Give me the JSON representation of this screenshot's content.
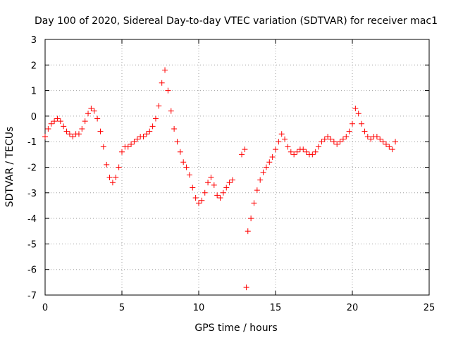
{
  "chart_data": {
    "type": "scatter",
    "title": "Day 100 of 2020, Sidereal Day-to-day VTEC variation (SDTVAR) for receiver mac1",
    "xlabel": "GPS time / hours",
    "ylabel": "SDTVAR / TECUs",
    "xlim": [
      0,
      25
    ],
    "ylim": [
      -7,
      3
    ],
    "xticks": [
      "0",
      "5",
      "10",
      "15",
      "20",
      "25"
    ],
    "yticks": [
      "3",
      "2",
      "1",
      "0",
      "-1",
      "-2",
      "-3",
      "-4",
      "-5",
      "-6",
      "-7"
    ],
    "grid": true,
    "marker": "+",
    "series": [
      {
        "name": "SDTVAR",
        "color": "#ff0000",
        "x": [
          0.0,
          0.2,
          0.4,
          0.6,
          0.8,
          1.0,
          1.2,
          1.4,
          1.6,
          1.8,
          2.0,
          2.2,
          2.4,
          2.6,
          2.8,
          3.0,
          3.2,
          3.4,
          3.6,
          3.8,
          4.0,
          4.2,
          4.4,
          4.6,
          4.8,
          5.0,
          5.2,
          5.4,
          5.6,
          5.8,
          6.0,
          6.2,
          6.4,
          6.6,
          6.8,
          7.0,
          7.2,
          7.4,
          7.6,
          7.8,
          8.0,
          8.2,
          8.4,
          8.6,
          8.8,
          9.0,
          9.2,
          9.4,
          9.6,
          9.8,
          10.0,
          10.2,
          10.4,
          10.6,
          10.8,
          11.0,
          11.2,
          11.4,
          11.6,
          11.8,
          12.0,
          12.2,
          12.8,
          13.0,
          13.1,
          13.2,
          13.4,
          13.6,
          13.8,
          14.0,
          14.2,
          14.4,
          14.6,
          14.8,
          15.0,
          15.2,
          15.4,
          15.6,
          15.8,
          16.0,
          16.2,
          16.4,
          16.6,
          16.8,
          17.0,
          17.2,
          17.4,
          17.6,
          17.8,
          18.0,
          18.2,
          18.4,
          18.6,
          18.8,
          19.0,
          19.2,
          19.4,
          19.6,
          19.8,
          20.0,
          20.2,
          20.4,
          20.6,
          20.8,
          21.0,
          21.2,
          21.4,
          21.6,
          21.8,
          22.0,
          22.2,
          22.4,
          22.6,
          22.8
        ],
        "y": [
          -0.8,
          -0.5,
          -0.3,
          -0.2,
          -0.1,
          -0.2,
          -0.4,
          -0.6,
          -0.7,
          -0.8,
          -0.7,
          -0.7,
          -0.5,
          -0.2,
          0.1,
          0.3,
          0.2,
          -0.1,
          -0.6,
          -1.2,
          -1.9,
          -2.4,
          -2.6,
          -2.4,
          -2.0,
          -1.4,
          -1.2,
          -1.2,
          -1.1,
          -1.0,
          -0.9,
          -0.8,
          -0.8,
          -0.7,
          -0.6,
          -0.4,
          -0.1,
          0.4,
          1.3,
          1.8,
          1.0,
          0.2,
          -0.5,
          -1.0,
          -1.4,
          -1.8,
          -2.0,
          -2.3,
          -2.8,
          -3.2,
          -3.4,
          -3.3,
          -3.0,
          -2.6,
          -2.4,
          -2.7,
          -3.1,
          -3.2,
          -3.0,
          -2.8,
          -2.6,
          -2.5,
          -1.5,
          -1.3,
          -6.7,
          -4.5,
          -4.0,
          -3.4,
          -2.9,
          -2.5,
          -2.2,
          -2.0,
          -1.8,
          -1.6,
          -1.3,
          -1.0,
          -0.7,
          -0.9,
          -1.2,
          -1.4,
          -1.5,
          -1.4,
          -1.3,
          -1.3,
          -1.4,
          -1.5,
          -1.5,
          -1.4,
          -1.2,
          -1.0,
          -0.9,
          -0.8,
          -0.9,
          -1.0,
          -1.1,
          -1.0,
          -0.9,
          -0.8,
          -0.6,
          -0.3,
          0.3,
          0.1,
          -0.3,
          -0.6,
          -0.8,
          -0.9,
          -0.8,
          -0.8,
          -0.9,
          -1.0,
          -1.1,
          -1.2,
          -1.3,
          -1.0
        ]
      }
    ]
  }
}
